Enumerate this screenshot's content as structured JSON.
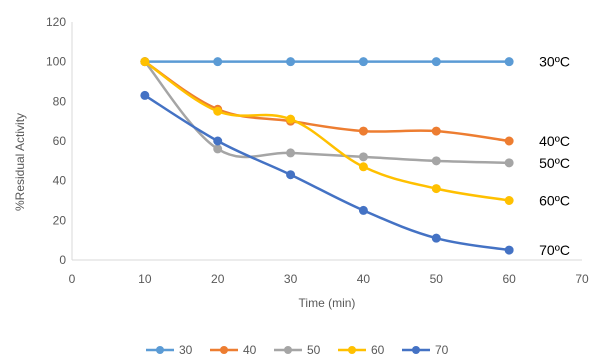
{
  "chart_data": {
    "type": "line",
    "title": "",
    "xlabel": "Time (min)",
    "ylabel": "%Residual Activity",
    "xlim": [
      0,
      70
    ],
    "ylim": [
      0,
      120
    ],
    "xticks": [
      0,
      10,
      20,
      30,
      40,
      50,
      60,
      70
    ],
    "yticks": [
      0,
      20,
      40,
      60,
      80,
      100,
      120
    ],
    "grid": false,
    "legend_position": "bottom",
    "x": [
      10,
      20,
      30,
      40,
      50,
      60
    ],
    "series": [
      {
        "name": "30",
        "color": "#5B9BD5",
        "values": [
          100,
          100,
          100,
          100,
          100,
          100
        ],
        "annotation": "30ºC"
      },
      {
        "name": "40",
        "color": "#ED7D31",
        "values": [
          100,
          76,
          70,
          65,
          65,
          60
        ],
        "annotation": "40ºC"
      },
      {
        "name": "50",
        "color": "#A5A5A5",
        "values": [
          100,
          56,
          54,
          52,
          50,
          49
        ],
        "annotation": "50ºC"
      },
      {
        "name": "60",
        "color": "#FFC000",
        "values": [
          100,
          75,
          71,
          47,
          36,
          30
        ],
        "annotation": "60ºC"
      },
      {
        "name": "70",
        "color": "#4472C4",
        "values": [
          83,
          60,
          43,
          25,
          11,
          5
        ],
        "annotation": "70ºC"
      }
    ]
  }
}
